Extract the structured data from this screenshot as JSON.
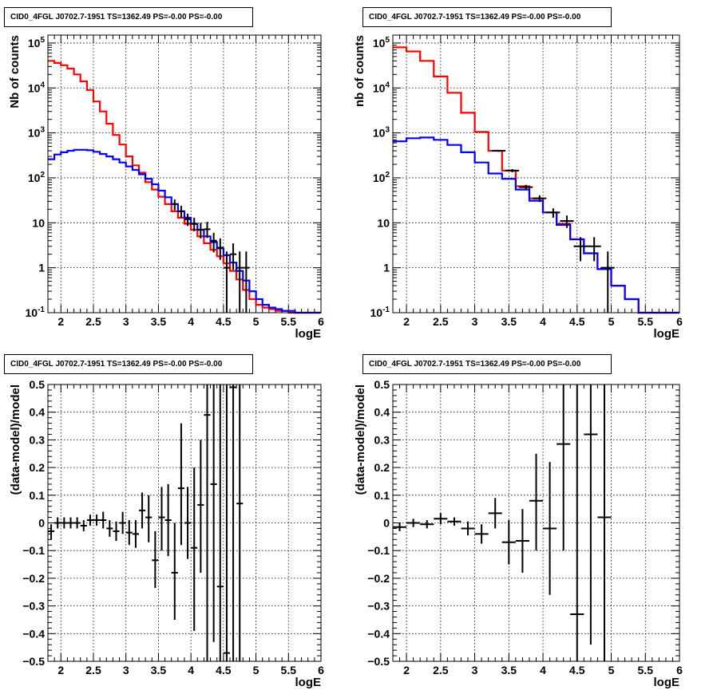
{
  "chart_data": [
    {
      "type": "step-histogram",
      "title": "CID0_4FGL J0702.7-1951 TS=1362.49 PS=-0.00 PS=-0.00",
      "xlabel": "logE",
      "ylabel": "Nb of counts",
      "yscale": "log",
      "xlim": [
        1.8,
        6.0
      ],
      "ylim": [
        0.1,
        150000
      ],
      "grid": true,
      "x_ticks": [
        "2",
        "2.5",
        "3",
        "3.5",
        "4",
        "4.5",
        "5",
        "5.5",
        "6"
      ],
      "y_ticks": [
        "10^-1",
        "1",
        "10",
        "10^2",
        "10^3",
        "10^4",
        "10^5"
      ],
      "bin_edges": [
        1.8,
        1.9,
        2.0,
        2.1,
        2.2,
        2.3,
        2.4,
        2.5,
        2.6,
        2.7,
        2.8,
        2.9,
        3.0,
        3.1,
        3.2,
        3.3,
        3.4,
        3.5,
        3.6,
        3.7,
        3.8,
        3.9,
        4.0,
        4.1,
        4.2,
        4.3,
        4.4,
        4.5,
        4.6,
        4.7,
        4.8,
        4.9,
        5.0,
        5.1,
        5.2,
        5.3,
        5.4,
        5.5,
        5.6,
        5.7,
        5.8,
        5.9,
        6.0
      ],
      "series": [
        {
          "color": "#ff0000",
          "values": [
            40000,
            36000,
            32000,
            27000,
            20000,
            14000,
            9000,
            5000,
            3000,
            1600,
            900,
            550,
            300,
            190,
            130,
            80,
            55,
            38,
            26,
            18,
            13,
            9.5,
            7,
            5,
            3.5,
            2.5,
            1.8,
            1.25,
            0.85,
            0.55,
            0.32,
            0.2,
            0.15,
            0.13,
            0.12,
            0.11,
            0.11,
            0.1,
            0.1,
            0.1,
            0.1,
            0.1
          ]
        },
        {
          "color": "#0000ff",
          "values": [
            260,
            330,
            370,
            400,
            420,
            420,
            410,
            380,
            340,
            300,
            260,
            220,
            180,
            150,
            120,
            95,
            72,
            52,
            37,
            26,
            18,
            13,
            9.5,
            7,
            5,
            3.7,
            2.7,
            1.9,
            1.3,
            0.85,
            0.52,
            0.3,
            0.2,
            0.15,
            0.13,
            0.12,
            0.11,
            0.11,
            0.1,
            0.1,
            0.1,
            0.1
          ]
        }
      ],
      "points": [
        {
          "x": 3.75,
          "y": 26,
          "xerr": 0.05,
          "ylo": 19,
          "yhi": 33
        },
        {
          "x": 3.85,
          "y": 18,
          "xerr": 0.05,
          "ylo": 13,
          "yhi": 24
        },
        {
          "x": 3.95,
          "y": 12,
          "xerr": 0.05,
          "ylo": 8.5,
          "yhi": 16
        },
        {
          "x": 4.05,
          "y": 9.5,
          "xerr": 0.05,
          "ylo": 6.5,
          "yhi": 13
        },
        {
          "x": 4.15,
          "y": 7,
          "xerr": 0.05,
          "ylo": 4.5,
          "yhi": 10
        },
        {
          "x": 4.25,
          "y": 7.2,
          "xerr": 0.05,
          "ylo": 4.6,
          "yhi": 10.5
        },
        {
          "x": 4.35,
          "y": 4,
          "xerr": 0.05,
          "ylo": 2.2,
          "yhi": 6
        },
        {
          "x": 4.45,
          "y": 2.8,
          "xerr": 0.05,
          "ylo": 1.5,
          "yhi": 4.5
        },
        {
          "x": 4.55,
          "y": 1.0,
          "xerr": 0.05,
          "ylo": 0.1,
          "yhi": 2.3
        },
        {
          "x": 4.65,
          "y": 2.0,
          "xerr": 0.05,
          "ylo": 0.9,
          "yhi": 3.5
        },
        {
          "x": 4.75,
          "y": 1.0,
          "xerr": 0.05,
          "ylo": 0.1,
          "yhi": 2.3
        },
        {
          "x": 4.85,
          "y": 1.0,
          "xerr": 0.05,
          "ylo": 0.1,
          "yhi": 2.3
        }
      ]
    },
    {
      "type": "step-histogram",
      "title": "CID0_4FGL J0702.7-1951 TS=1362.49 PS=-0.00 PS=-0.00",
      "xlabel": "logE",
      "ylabel": "nb of counts",
      "yscale": "log",
      "xlim": [
        1.8,
        6.0
      ],
      "ylim": [
        0.1,
        150000
      ],
      "grid": true,
      "x_ticks": [
        "2",
        "2.5",
        "3",
        "3.5",
        "4",
        "4.5",
        "5",
        "5.5",
        "6"
      ],
      "y_ticks": [
        "10^-1",
        "1",
        "10",
        "10^2",
        "10^3",
        "10^4",
        "10^5"
      ],
      "bin_edges": [
        1.8,
        2.0,
        2.2,
        2.4,
        2.6,
        2.8,
        3.0,
        3.2,
        3.4,
        3.6,
        3.8,
        4.0,
        4.2,
        4.4,
        4.6,
        4.8,
        5.0,
        5.2,
        5.4,
        5.6,
        5.8,
        6.0
      ],
      "series": [
        {
          "color": "#ff0000",
          "values": [
            80000,
            65000,
            40000,
            18000,
            7800,
            2800,
            1050,
            400,
            145,
            65,
            35,
            17,
            9.5,
            4.3,
            2.1,
            0.93,
            0.4,
            0.2,
            0.1,
            0.1,
            0.1
          ]
        },
        {
          "color": "#0000ff",
          "values": [
            650,
            760,
            790,
            700,
            540,
            370,
            220,
            125,
            95,
            55,
            31,
            17,
            9,
            4.3,
            2.1,
            0.93,
            0.4,
            0.2,
            0.1,
            0.1,
            0.1
          ]
        }
      ],
      "points": [
        {
          "x": 3.35,
          "y": 400,
          "xerr": 0.1,
          "ylo": 380,
          "yhi": 420
        },
        {
          "x": 3.55,
          "y": 145,
          "xerr": 0.1,
          "ylo": 133,
          "yhi": 157
        },
        {
          "x": 3.75,
          "y": 62,
          "xerr": 0.1,
          "ylo": 54,
          "yhi": 70
        },
        {
          "x": 3.95,
          "y": 35,
          "xerr": 0.1,
          "ylo": 29,
          "yhi": 41
        },
        {
          "x": 4.15,
          "y": 17,
          "xerr": 0.1,
          "ylo": 13,
          "yhi": 21
        },
        {
          "x": 4.35,
          "y": 11,
          "xerr": 0.1,
          "ylo": 7.7,
          "yhi": 14.5
        },
        {
          "x": 4.55,
          "y": 3,
          "xerr": 0.1,
          "ylo": 1.4,
          "yhi": 4.8
        },
        {
          "x": 4.75,
          "y": 3,
          "xerr": 0.1,
          "ylo": 1.4,
          "yhi": 4.8
        },
        {
          "x": 4.95,
          "y": 1,
          "xerr": 0.1,
          "ylo": 0.1,
          "yhi": 2.3
        }
      ]
    },
    {
      "type": "errorbar",
      "title": "CID0_4FGL J0702.7-1951 TS=1362.49 PS=-0.00 PS=-0.00",
      "xlabel": "logE",
      "ylabel": "(data-model)/model",
      "xlim": [
        1.8,
        6.0
      ],
      "ylim": [
        -0.5,
        0.5
      ],
      "grid": true,
      "x_ticks": [
        "2",
        "2.5",
        "3",
        "3.5",
        "4",
        "4.5",
        "5",
        "5.5",
        "6"
      ],
      "y_ticks": [
        "-0.5",
        "-0.4",
        "-0.3",
        "-0.2",
        "-0.1",
        "0",
        "0.1",
        "0.2",
        "0.3",
        "0.4",
        "0.5"
      ],
      "points": [
        {
          "x": 1.85,
          "y": -0.03,
          "xerr": 0.05,
          "ylo": -0.06,
          "yhi": -0.005
        },
        {
          "x": 1.95,
          "y": 0.0,
          "xerr": 0.05,
          "ylo": -0.02,
          "yhi": 0.02
        },
        {
          "x": 2.05,
          "y": 0.0,
          "xerr": 0.05,
          "ylo": -0.02,
          "yhi": 0.02
        },
        {
          "x": 2.15,
          "y": 0.0,
          "xerr": 0.05,
          "ylo": -0.02,
          "yhi": 0.02
        },
        {
          "x": 2.25,
          "y": 0.0,
          "xerr": 0.05,
          "ylo": -0.02,
          "yhi": 0.02
        },
        {
          "x": 2.35,
          "y": -0.01,
          "xerr": 0.05,
          "ylo": -0.03,
          "yhi": 0.01
        },
        {
          "x": 2.45,
          "y": 0.01,
          "xerr": 0.05,
          "ylo": -0.01,
          "yhi": 0.03
        },
        {
          "x": 2.55,
          "y": 0.01,
          "xerr": 0.05,
          "ylo": -0.01,
          "yhi": 0.03
        },
        {
          "x": 2.65,
          "y": 0.01,
          "xerr": 0.05,
          "ylo": -0.02,
          "yhi": 0.04
        },
        {
          "x": 2.75,
          "y": -0.02,
          "xerr": 0.05,
          "ylo": -0.05,
          "yhi": 0.01
        },
        {
          "x": 2.85,
          "y": -0.03,
          "xerr": 0.05,
          "ylo": -0.065,
          "yhi": 0.005
        },
        {
          "x": 2.95,
          "y": 0.0,
          "xerr": 0.05,
          "ylo": -0.04,
          "yhi": 0.04
        },
        {
          "x": 3.05,
          "y": -0.035,
          "xerr": 0.05,
          "ylo": -0.08,
          "yhi": 0.01
        },
        {
          "x": 3.15,
          "y": -0.04,
          "xerr": 0.05,
          "ylo": -0.09,
          "yhi": 0.01
        },
        {
          "x": 3.25,
          "y": 0.045,
          "xerr": 0.05,
          "ylo": -0.02,
          "yhi": 0.11
        },
        {
          "x": 3.35,
          "y": 0.02,
          "xerr": 0.05,
          "ylo": -0.07,
          "yhi": 0.1
        },
        {
          "x": 3.45,
          "y": -0.135,
          "xerr": 0.05,
          "ylo": -0.235,
          "yhi": -0.03
        },
        {
          "x": 3.55,
          "y": 0.02,
          "xerr": 0.05,
          "ylo": -0.1,
          "yhi": 0.13
        },
        {
          "x": 3.65,
          "y": 0.01,
          "xerr": 0.05,
          "ylo": -0.12,
          "yhi": 0.14
        },
        {
          "x": 3.75,
          "y": -0.18,
          "xerr": 0.05,
          "ylo": -0.35,
          "yhi": 0.0
        },
        {
          "x": 3.85,
          "y": 0.125,
          "xerr": 0.05,
          "ylo": -0.08,
          "yhi": 0.36
        },
        {
          "x": 3.95,
          "y": 0.0,
          "xerr": 0.05,
          "ylo": -0.13,
          "yhi": 0.13
        },
        {
          "x": 4.05,
          "y": -0.09,
          "xerr": 0.05,
          "ylo": -0.39,
          "yhi": 0.2
        },
        {
          "x": 4.15,
          "y": 0.065,
          "xerr": 0.05,
          "ylo": -0.18,
          "yhi": 0.3
        },
        {
          "x": 4.25,
          "y": 0.39,
          "xerr": 0.05,
          "ylo": -0.5,
          "yhi": 0.5
        },
        {
          "x": 4.35,
          "y": 0.14,
          "xerr": 0.05,
          "ylo": -0.43,
          "yhi": 0.5
        },
        {
          "x": 4.45,
          "y": -0.23,
          "xerr": 0.05,
          "ylo": -0.5,
          "yhi": 0.5
        },
        {
          "x": 4.55,
          "y": -0.47,
          "xerr": 0.05,
          "ylo": -0.5,
          "yhi": 0.5
        },
        {
          "x": 4.65,
          "y": 0.49,
          "xerr": 0.05,
          "ylo": -0.5,
          "yhi": 0.5
        },
        {
          "x": 4.75,
          "y": 0.07,
          "xerr": 0.05,
          "ylo": -0.5,
          "yhi": 0.5
        }
      ]
    },
    {
      "type": "errorbar",
      "title": "CID0_4FGL J0702.7-1951 TS=1362.49 PS=-0.00 PS=-0.00",
      "xlabel": "logE",
      "ylabel": "(data-model)/model",
      "xlim": [
        1.8,
        6.0
      ],
      "ylim": [
        -0.5,
        0.5
      ],
      "grid": true,
      "x_ticks": [
        "2",
        "2.5",
        "3",
        "3.5",
        "4",
        "4.5",
        "5",
        "5.5",
        "6"
      ],
      "y_ticks": [
        "-0.5",
        "-0.4",
        "-0.3",
        "-0.2",
        "-0.1",
        "0",
        "0.1",
        "0.2",
        "0.3",
        "0.4",
        "0.5"
      ],
      "points": [
        {
          "x": 1.9,
          "y": -0.015,
          "xerr": 0.1,
          "ylo": -0.03,
          "yhi": 0.0
        },
        {
          "x": 2.1,
          "y": 0.0,
          "xerr": 0.1,
          "ylo": -0.015,
          "yhi": 0.015
        },
        {
          "x": 2.3,
          "y": -0.005,
          "xerr": 0.1,
          "ylo": -0.02,
          "yhi": 0.01
        },
        {
          "x": 2.5,
          "y": 0.015,
          "xerr": 0.1,
          "ylo": -0.005,
          "yhi": 0.035
        },
        {
          "x": 2.7,
          "y": 0.005,
          "xerr": 0.1,
          "ylo": -0.01,
          "yhi": 0.02
        },
        {
          "x": 2.9,
          "y": -0.02,
          "xerr": 0.1,
          "ylo": -0.045,
          "yhi": 0.005
        },
        {
          "x": 3.1,
          "y": -0.04,
          "xerr": 0.1,
          "ylo": -0.075,
          "yhi": -0.005
        },
        {
          "x": 3.3,
          "y": 0.035,
          "xerr": 0.1,
          "ylo": -0.02,
          "yhi": 0.09
        },
        {
          "x": 3.5,
          "y": -0.07,
          "xerr": 0.1,
          "ylo": -0.15,
          "yhi": 0.01
        },
        {
          "x": 3.7,
          "y": -0.065,
          "xerr": 0.1,
          "ylo": -0.18,
          "yhi": 0.05
        },
        {
          "x": 3.9,
          "y": 0.08,
          "xerr": 0.1,
          "ylo": -0.1,
          "yhi": 0.25
        },
        {
          "x": 4.1,
          "y": -0.02,
          "xerr": 0.1,
          "ylo": -0.26,
          "yhi": 0.22
        },
        {
          "x": 4.3,
          "y": 0.285,
          "xerr": 0.1,
          "ylo": -0.1,
          "yhi": 0.5
        },
        {
          "x": 4.5,
          "y": -0.33,
          "xerr": 0.1,
          "ylo": -0.5,
          "yhi": 0.5
        },
        {
          "x": 4.7,
          "y": 0.32,
          "xerr": 0.1,
          "ylo": -0.44,
          "yhi": 0.5
        },
        {
          "x": 4.9,
          "y": 0.02,
          "xerr": 0.1,
          "ylo": -0.5,
          "yhi": 0.5
        }
      ]
    }
  ]
}
